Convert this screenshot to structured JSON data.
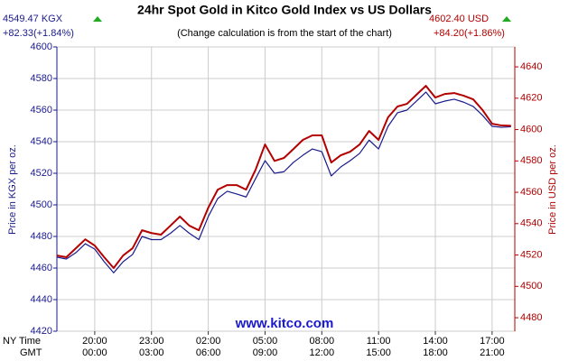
{
  "chart_data": {
    "type": "line",
    "title": "24hr Spot Gold in Kitco Gold Index vs US Dollars",
    "subtitle": "(Change calculation is from the start of the chart)",
    "left_header": {
      "price": "4549.47 KGX",
      "change": "+82.33(+1.84%)"
    },
    "right_header": {
      "price": "4602.40 USD",
      "change": "+84.20(+1.86%)"
    },
    "ylabel": "Price in KGX per oz.",
    "y2label": "Price in USD per oz.",
    "watermark": "www.kitco.com",
    "xlabel": "NY Time",
    "x2label": "GMT",
    "x": [
      0,
      0.5,
      1,
      1.5,
      2,
      2.5,
      3,
      3.5,
      4,
      4.5,
      5,
      5.5,
      6,
      6.5,
      7,
      7.5,
      8,
      8.5,
      9,
      9.5,
      10,
      10.5,
      11,
      11.5,
      12,
      12.5,
      13,
      13.5,
      14,
      14.5,
      15,
      15.5,
      16,
      16.5,
      17,
      17.5,
      18,
      18.5,
      19,
      19.5,
      20,
      20.5,
      21,
      21.5,
      22,
      22.5,
      23,
      23.5,
      24
    ],
    "xlim": [
      0,
      24.2
    ],
    "xticks": [
      {
        "value": 2,
        "label": "20:00"
      },
      {
        "value": 5,
        "label": "23:00"
      },
      {
        "value": 8,
        "label": "02:00"
      },
      {
        "value": 11,
        "label": "05:00"
      },
      {
        "value": 14,
        "label": "08:00"
      },
      {
        "value": 17,
        "label": "11:00"
      },
      {
        "value": 20,
        "label": "14:00"
      },
      {
        "value": 23,
        "label": "17:00"
      }
    ],
    "x2ticks": [
      {
        "value": 2,
        "label": "00:00"
      },
      {
        "value": 5,
        "label": "03:00"
      },
      {
        "value": 8,
        "label": "06:00"
      },
      {
        "value": 11,
        "label": "09:00"
      },
      {
        "value": 14,
        "label": "12:00"
      },
      {
        "value": 17,
        "label": "15:00"
      },
      {
        "value": 20,
        "label": "18:00"
      },
      {
        "value": 23,
        "label": "21:00"
      }
    ],
    "ylim": [
      4420,
      4600
    ],
    "yticks": [
      4420,
      4440,
      4460,
      4480,
      4500,
      4520,
      4540,
      4560,
      4580,
      4600
    ],
    "y2lim": [
      4471.4,
      4652.7
    ],
    "y2ticks": [
      4480,
      4500,
      4520,
      4540,
      4560,
      4580,
      4600,
      4620,
      4640
    ],
    "grid": true,
    "series": [
      {
        "color": "#1a1a8c",
        "axis": "y",
        "values": [
          4466.9,
          4465.7,
          4469.7,
          4475.4,
          4472,
          4464,
          4457,
          4464,
          4468.6,
          4480,
          4478,
          4478,
          4482,
          4486.9,
          4482,
          4478,
          4492.6,
          4504,
          4508.6,
          4506.9,
          4505,
          4516.6,
          4528,
          4520,
          4521,
          4526.9,
          4531.4,
          4535.4,
          4533.7,
          4518.3,
          4524,
          4528,
          4532.6,
          4541,
          4535.4,
          4549.7,
          4558.3,
          4560,
          4565.7,
          4571.4,
          4564,
          4565.7,
          4566.9,
          4565,
          4562.3,
          4556.6,
          4549.7,
          4549.1,
          4549.47
        ]
      },
      {
        "color": "#b30000",
        "axis": "y2",
        "values": [
          4519.7,
          4518.6,
          4524.3,
          4530,
          4526,
          4518.6,
          4511.7,
          4519.7,
          4524.3,
          4535.8,
          4534,
          4533,
          4538.7,
          4544.5,
          4538.7,
          4535.8,
          4550.2,
          4561.7,
          4564.6,
          4564.6,
          4561.7,
          4574.4,
          4590.5,
          4580,
          4581.9,
          4587.6,
          4593.4,
          4596.3,
          4596.3,
          4579,
          4583.6,
          4585.9,
          4590.5,
          4599.1,
          4593.4,
          4607.8,
          4614.7,
          4616.4,
          4622.2,
          4627.9,
          4620.4,
          4622.7,
          4623.3,
          4621.6,
          4619.3,
          4612.4,
          4603.7,
          4602.6,
          4602.4
        ]
      }
    ]
  }
}
